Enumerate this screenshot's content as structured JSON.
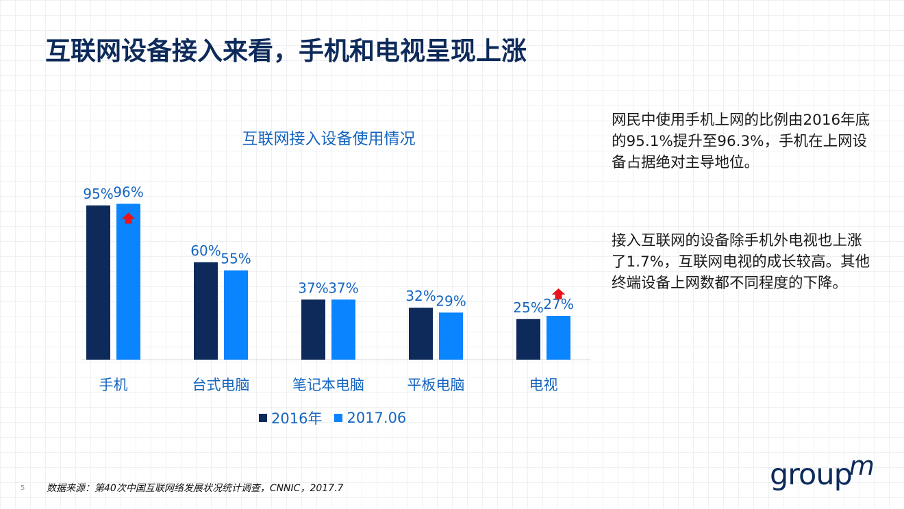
{
  "slide": {
    "title": "互联网设备接入来看，手机和电视呈现上涨",
    "page_number": "5",
    "source": "数据来源：第40次中国互联网络发展状况统计调查，CNNIC，2017.7",
    "logo_text": "group",
    "logo_mark": "m"
  },
  "side_text": {
    "paragraph1": "网民中使用手机上网的比例由2016年底的95.1%提升至96.3%，手机在上网设备占据绝对主导地位。",
    "paragraph2": "接入互联网的设备除手机外电视也上涨了1.7%，互联网电视的成长较高。其他终端设备上网数都不同程度的下降。"
  },
  "chart_data": {
    "type": "bar",
    "title": "互联网接入设备使用情况",
    "categories": [
      "手机",
      "台式电脑",
      "笔记本电脑",
      "平板电脑",
      "电视"
    ],
    "series": [
      {
        "name": "2016年",
        "values": [
          95,
          60,
          37,
          32,
          25
        ],
        "color": "#0d2a5a",
        "labels": [
          "95%",
          "60%",
          "37%",
          "32%",
          "25%"
        ]
      },
      {
        "name": "2017.06",
        "values": [
          96,
          55,
          37,
          29,
          27
        ],
        "color": "#0a84ff",
        "labels": [
          "96%",
          "55%",
          "37%",
          "29%",
          "27%"
        ]
      }
    ],
    "ylim": [
      0,
      100
    ],
    "increase_markers": [
      "手机",
      "电视"
    ],
    "increase_marker_color": "#e8141c",
    "legend_position": "bottom",
    "grid": false
  }
}
